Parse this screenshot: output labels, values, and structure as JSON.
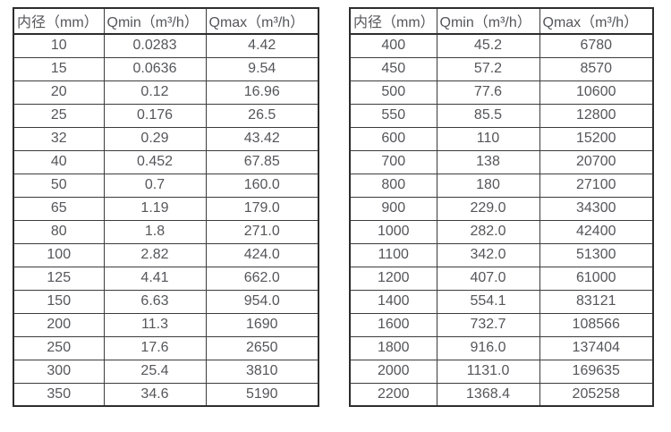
{
  "colors": {
    "background": "#ffffff",
    "border": "#2d2d2d",
    "inner_border": "#3c3c3c",
    "text": "#55565a"
  },
  "tables": [
    {
      "headers": [
        "内径（mm）",
        "Qmin（m³/h）",
        "Qmax（m³/h）"
      ],
      "rows": [
        [
          "10",
          "0.0283",
          "4.42"
        ],
        [
          "15",
          "0.0636",
          "9.54"
        ],
        [
          "20",
          "0.12",
          "16.96"
        ],
        [
          "25",
          "0.176",
          "26.5"
        ],
        [
          "32",
          "0.29",
          "43.42"
        ],
        [
          "40",
          "0.452",
          "67.85"
        ],
        [
          "50",
          "0.7",
          "160.0"
        ],
        [
          "65",
          "1.19",
          "179.0"
        ],
        [
          "80",
          "1.8",
          "271.0"
        ],
        [
          "100",
          "2.82",
          "424.0"
        ],
        [
          "125",
          "4.41",
          "662.0"
        ],
        [
          "150",
          "6.63",
          "954.0"
        ],
        [
          "200",
          "11.3",
          "1690"
        ],
        [
          "250",
          "17.6",
          "2650"
        ],
        [
          "300",
          "25.4",
          "3810"
        ],
        [
          "350",
          "34.6",
          "5190"
        ]
      ]
    },
    {
      "headers": [
        "内径（mm）",
        "Qmin（m³/h）",
        "Qmax（m³/h）"
      ],
      "rows": [
        [
          "400",
          "45.2",
          "6780"
        ],
        [
          "450",
          "57.2",
          "8570"
        ],
        [
          "500",
          "77.6",
          "10600"
        ],
        [
          "550",
          "85.5",
          "12800"
        ],
        [
          "600",
          "110",
          "15200"
        ],
        [
          "700",
          "138",
          "20700"
        ],
        [
          "800",
          "180",
          "27100"
        ],
        [
          "900",
          "229.0",
          "34300"
        ],
        [
          "1000",
          "282.0",
          "42400"
        ],
        [
          "1100",
          "342.0",
          "51300"
        ],
        [
          "1200",
          "407.0",
          "61000"
        ],
        [
          "1400",
          "554.1",
          "83121"
        ],
        [
          "1600",
          "732.7",
          "108566"
        ],
        [
          "1800",
          "916.0",
          "137404"
        ],
        [
          "2000",
          "1131.0",
          "169635"
        ],
        [
          "2200",
          "1368.4",
          "205258"
        ]
      ]
    }
  ]
}
